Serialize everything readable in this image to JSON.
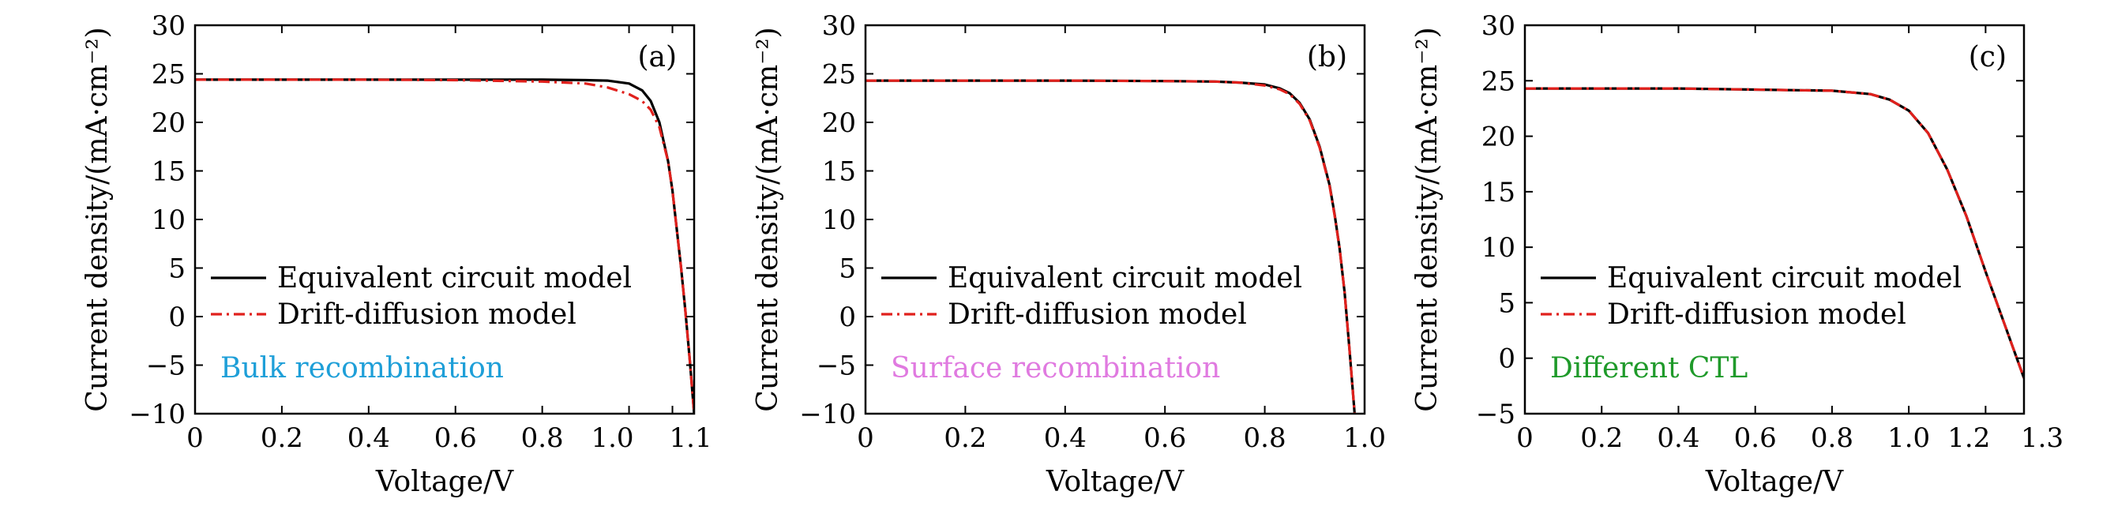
{
  "chart_data": [
    {
      "type": "line",
      "panel_label": "(a)",
      "xlabel": "Voltage/V",
      "ylabel": "Current density/(mA·cm⁻²)",
      "xlim": [
        0,
        1.15
      ],
      "ylim": [
        -10,
        30
      ],
      "xticks": [
        0,
        0.2,
        0.4,
        0.6,
        0.8,
        1.0,
        1.1
      ],
      "xtick_labels": [
        "0",
        "0.2",
        "0.4",
        "0.6",
        "0.8",
        "1.0",
        "1.1"
      ],
      "yticks": [
        -10,
        -5,
        0,
        5,
        10,
        15,
        20,
        25,
        30
      ],
      "ytick_labels": [
        "−10",
        "−5",
        "0",
        "5",
        "10",
        "15",
        "20",
        "25",
        "30"
      ],
      "legend": {
        "position": "center-left",
        "entries": [
          "Equivalent circuit model",
          "Drift-diffusion model"
        ]
      },
      "annotation": {
        "text": "Bulk recombination",
        "color": "#1e9fd8"
      },
      "series": [
        {
          "name": "Equivalent circuit model",
          "color": "#000000",
          "dash": "solid",
          "x": [
            0,
            0.2,
            0.4,
            0.6,
            0.8,
            0.9,
            0.95,
            1.0,
            1.03,
            1.05,
            1.07,
            1.09,
            1.1,
            1.11,
            1.12,
            1.13,
            1.14,
            1.15
          ],
          "y": [
            24.4,
            24.4,
            24.4,
            24.4,
            24.4,
            24.35,
            24.3,
            24.0,
            23.3,
            22.2,
            20.0,
            16.0,
            13.0,
            9.0,
            5.0,
            0.5,
            -4.5,
            -10
          ]
        },
        {
          "name": "Drift-diffusion model",
          "color": "#e0201c",
          "dash": "dashdot",
          "x": [
            0,
            0.2,
            0.4,
            0.6,
            0.8,
            0.9,
            0.95,
            1.0,
            1.03,
            1.05,
            1.07,
            1.09,
            1.1,
            1.11,
            1.12,
            1.13,
            1.14,
            1.15
          ],
          "y": [
            24.4,
            24.4,
            24.4,
            24.35,
            24.2,
            24.0,
            23.6,
            22.9,
            22.2,
            21.3,
            19.5,
            16.0,
            13.0,
            9.0,
            5.0,
            0.5,
            -4.5,
            -10
          ]
        }
      ]
    },
    {
      "type": "line",
      "panel_label": "(b)",
      "xlabel": "Voltage/V",
      "ylabel": "Current density/(mA·cm⁻²)",
      "xlim": [
        0,
        1.0
      ],
      "ylim": [
        -10,
        30
      ],
      "xticks": [
        0,
        0.2,
        0.4,
        0.6,
        0.8,
        1.0
      ],
      "xtick_labels": [
        "0",
        "0.2",
        "0.4",
        "0.6",
        "0.8",
        "1.0"
      ],
      "yticks": [
        -10,
        -5,
        0,
        5,
        10,
        15,
        20,
        25,
        30
      ],
      "ytick_labels": [
        "−10",
        "−5",
        "0",
        "5",
        "10",
        "15",
        "20",
        "25",
        "30"
      ],
      "legend": {
        "position": "center-left",
        "entries": [
          "Equivalent circuit model",
          "Drift-diffusion model"
        ]
      },
      "annotation": {
        "text": "Surface recombination",
        "color": "#e07ae0"
      },
      "series": [
        {
          "name": "Equivalent circuit model",
          "color": "#000000",
          "dash": "solid",
          "x": [
            0,
            0.2,
            0.4,
            0.6,
            0.7,
            0.75,
            0.8,
            0.83,
            0.85,
            0.87,
            0.89,
            0.91,
            0.93,
            0.94,
            0.95,
            0.96,
            0.97,
            0.98
          ],
          "y": [
            24.3,
            24.3,
            24.3,
            24.25,
            24.2,
            24.1,
            23.9,
            23.5,
            23.0,
            22.0,
            20.3,
            17.5,
            13.5,
            10.5,
            7.0,
            2.5,
            -3.5,
            -10
          ]
        },
        {
          "name": "Drift-diffusion model",
          "color": "#e0201c",
          "dash": "dashdot",
          "x": [
            0,
            0.2,
            0.4,
            0.6,
            0.7,
            0.75,
            0.8,
            0.83,
            0.85,
            0.87,
            0.89,
            0.91,
            0.93,
            0.94,
            0.95,
            0.96,
            0.97,
            0.98
          ],
          "y": [
            24.3,
            24.3,
            24.3,
            24.25,
            24.2,
            24.1,
            23.8,
            23.4,
            22.9,
            21.9,
            20.2,
            17.4,
            13.4,
            10.4,
            7.0,
            2.5,
            -3.5,
            -10
          ]
        }
      ]
    },
    {
      "type": "line",
      "panel_label": "(c)",
      "xlabel": "Voltage/V",
      "ylabel": "Current density/(mA·cm⁻²)",
      "xlim": [
        0,
        1.3
      ],
      "ylim": [
        -5,
        30
      ],
      "xticks": [
        0,
        0.2,
        0.4,
        0.6,
        0.8,
        1.0,
        1.2,
        1.3
      ],
      "xtick_labels": [
        "0",
        "0.2",
        "0.4",
        "0.6",
        "0.8",
        "1.0",
        "1.2",
        "1.3"
      ],
      "yticks": [
        -5,
        0,
        5,
        10,
        15,
        20,
        25,
        30
      ],
      "ytick_labels": [
        "−5",
        "0",
        "5",
        "10",
        "15",
        "20",
        "25",
        "30"
      ],
      "legend": {
        "position": "center-left",
        "entries": [
          "Equivalent circuit model",
          "Drift-diffusion model"
        ]
      },
      "annotation": {
        "text": "Different CTL",
        "color": "#1f9a2a"
      },
      "series": [
        {
          "name": "Equivalent circuit model",
          "color": "#000000",
          "dash": "solid",
          "x": [
            0,
            0.2,
            0.4,
            0.6,
            0.8,
            0.9,
            0.95,
            1.0,
            1.05,
            1.1,
            1.15,
            1.2,
            1.25,
            1.3
          ],
          "y": [
            24.3,
            24.3,
            24.3,
            24.2,
            24.1,
            23.8,
            23.3,
            22.3,
            20.3,
            17.0,
            12.8,
            7.8,
            3.0,
            -1.8
          ]
        },
        {
          "name": "Drift-diffusion model",
          "color": "#e0201c",
          "dash": "dashdot",
          "x": [
            0,
            0.2,
            0.4,
            0.6,
            0.8,
            0.9,
            0.95,
            1.0,
            1.05,
            1.1,
            1.15,
            1.2,
            1.25,
            1.3
          ],
          "y": [
            24.3,
            24.3,
            24.3,
            24.2,
            24.1,
            23.8,
            23.3,
            22.3,
            20.3,
            17.0,
            12.8,
            7.8,
            3.0,
            -1.8
          ]
        }
      ]
    }
  ]
}
